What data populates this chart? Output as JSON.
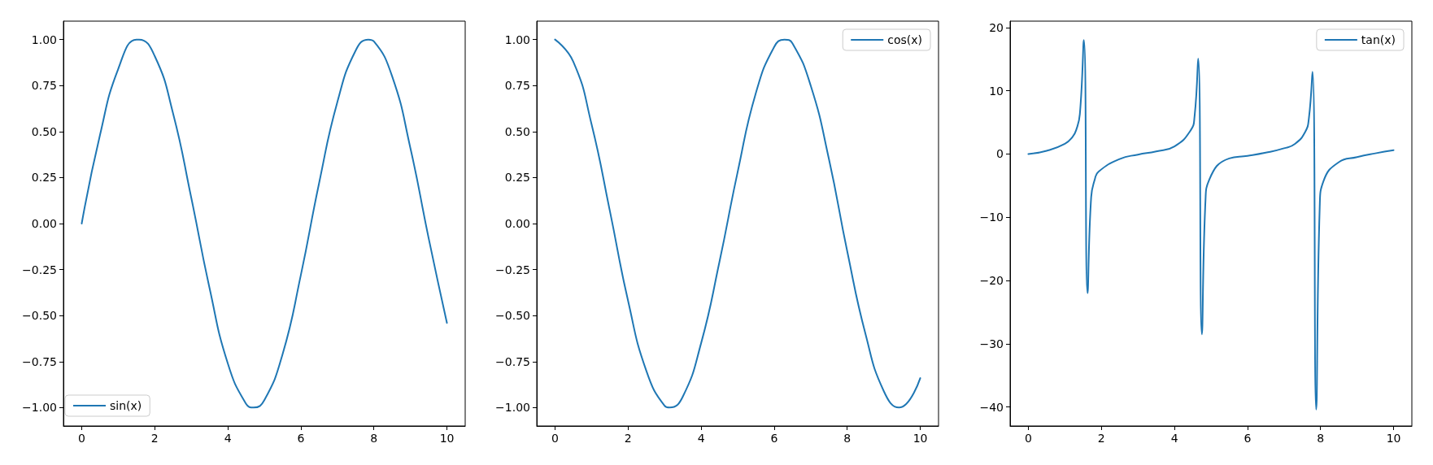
{
  "chart_data": [
    {
      "type": "line",
      "xlim": [
        -0.5,
        10.5
      ],
      "xticks": [
        0,
        2,
        4,
        6,
        8,
        10
      ],
      "ylim": [
        -1.1,
        1.1
      ],
      "yticks": [
        {
          "value": -1,
          "label": "−1.00"
        },
        {
          "value": -0.75,
          "label": "−0.75"
        },
        {
          "value": -0.5,
          "label": "−0.50"
        },
        {
          "value": -0.25,
          "label": "−0.25"
        },
        {
          "value": 0,
          "label": "0.00"
        },
        {
          "value": 0.25,
          "label": "0.25"
        },
        {
          "value": 0.5,
          "label": "0.50"
        },
        {
          "value": 0.75,
          "label": "0.75"
        },
        {
          "value": 1,
          "label": "1.00"
        }
      ],
      "grid": false,
      "legend": "bottom left",
      "marker": "none",
      "series": [
        {
          "name": "sin(x)",
          "color": "#1f77b4",
          "x": [
            0,
            0.5,
            1,
            1.5,
            1.57,
            2,
            2.5,
            3,
            3.5,
            4,
            4.5,
            4.71,
            5,
            5.5,
            6,
            6.5,
            7,
            7.5,
            7.85,
            8,
            8.5,
            9,
            9.5,
            10
          ],
          "values": [
            0,
            0.48,
            0.84,
            1.0,
            1.0,
            0.91,
            0.6,
            0.14,
            -0.35,
            -0.76,
            -0.98,
            -1.0,
            -0.96,
            -0.71,
            -0.28,
            0.22,
            0.66,
            0.94,
            1.0,
            0.99,
            0.8,
            0.41,
            -0.08,
            -0.54
          ]
        }
      ]
    },
    {
      "type": "line",
      "xlim": [
        -0.5,
        10.5
      ],
      "xticks": [
        0,
        2,
        4,
        6,
        8,
        10
      ],
      "ylim": [
        -1.1,
        1.1
      ],
      "yticks": [
        {
          "value": -1,
          "label": "−1.00"
        },
        {
          "value": -0.75,
          "label": "−0.75"
        },
        {
          "value": -0.5,
          "label": "−0.50"
        },
        {
          "value": -0.25,
          "label": "−0.25"
        },
        {
          "value": 0,
          "label": "0.00"
        },
        {
          "value": 0.25,
          "label": "0.25"
        },
        {
          "value": 0.5,
          "label": "0.50"
        },
        {
          "value": 0.75,
          "label": "0.75"
        },
        {
          "value": 1,
          "label": "1.00"
        }
      ],
      "grid": false,
      "legend": "top right",
      "marker": "none",
      "series": [
        {
          "name": "cos(x)",
          "color": "#1f77b4",
          "x": [
            0,
            0.5,
            1,
            1.5,
            2,
            2.5,
            3,
            3.14,
            3.5,
            4,
            4.5,
            5,
            5.5,
            6,
            6.28,
            6.5,
            7,
            7.5,
            8,
            8.5,
            9,
            9.42,
            10
          ],
          "values": [
            1,
            0.88,
            0.54,
            0.07,
            -0.42,
            -0.8,
            -0.99,
            -1.0,
            -0.94,
            -0.65,
            -0.21,
            0.28,
            0.71,
            0.96,
            1.0,
            0.98,
            0.75,
            0.35,
            -0.15,
            -0.6,
            -0.91,
            -1.0,
            -0.84
          ]
        }
      ]
    },
    {
      "type": "line",
      "xlim": [
        -0.5,
        10.5
      ],
      "xticks": [
        0,
        2,
        4,
        6,
        8,
        10
      ],
      "ylim": [
        -43,
        21
      ],
      "yticks": [
        {
          "value": -40,
          "label": "−40"
        },
        {
          "value": -30,
          "label": "−30"
        },
        {
          "value": -20,
          "label": "−20"
        },
        {
          "value": -10,
          "label": "−10"
        },
        0,
        10,
        20
      ],
      "grid": false,
      "legend": "top right",
      "marker": "none",
      "series": [
        {
          "name": "tan(x)",
          "color": "#1f77b4",
          "x": [
            0,
            0.5,
            1,
            1.21,
            1.31,
            1.41,
            1.52,
            1.62,
            1.72,
            1.82,
            1.92,
            2.5,
            3,
            3.5,
            4,
            4.44,
            4.55,
            4.65,
            4.75,
            4.85,
            4.95,
            5.5,
            6,
            6.5,
            7,
            7.3,
            7.58,
            7.68,
            7.78,
            7.88,
            7.98,
            8.08,
            8.5,
            9,
            9.5,
            10
          ],
          "values": [
            0,
            0.5,
            1.6,
            2.7,
            3.8,
            6.3,
            18,
            -22,
            -6.8,
            -4,
            -2.8,
            -0.8,
            -0.1,
            0.4,
            1.2,
            3.7,
            5.9,
            15.1,
            -28.5,
            -7.3,
            -4.1,
            -0.7,
            -0.3,
            0.2,
            0.9,
            1.6,
            3.5,
            5.6,
            13,
            -40.4,
            -7.9,
            -4.3,
            -1.3,
            -0.5,
            0.1,
            0.6
          ]
        }
      ]
    }
  ]
}
